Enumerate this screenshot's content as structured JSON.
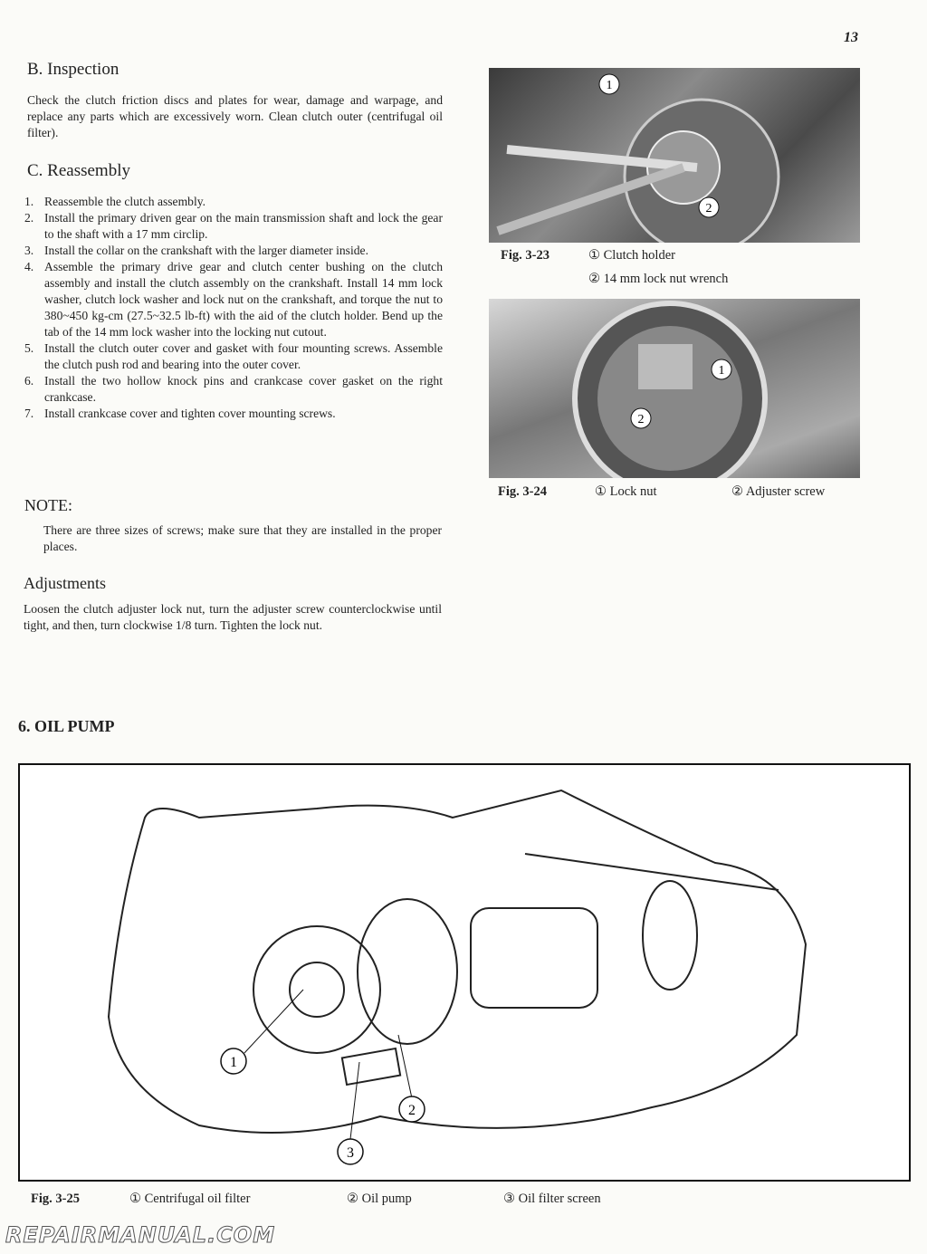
{
  "page_number": "13",
  "inspection": {
    "heading": "B.  Inspection",
    "text": "Check the clutch friction discs and plates for wear, damage and warpage, and replace any parts which are excessively worn. Clean clutch outer (centrifugal oil filter)."
  },
  "reassembly": {
    "heading": "C.  Reassembly",
    "items": [
      {
        "num": "1.",
        "text": "Reassemble the clutch assembly."
      },
      {
        "num": "2.",
        "text": "Install the primary driven gear on the main transmission shaft and lock the gear to the shaft with a 17 mm circlip."
      },
      {
        "num": "3.",
        "text": "Install the collar on the crankshaft with the larger diameter inside."
      },
      {
        "num": "4.",
        "text": "Assemble the primary drive gear and clutch center bushing on the clutch assembly and install the clutch assembly on the crankshaft. Install 14 mm lock washer, clutch lock washer and lock nut on the crankshaft, and torque the nut to 380~450 kg-cm (27.5~32.5 lb-ft) with the aid of the clutch holder. Bend up the tab of the 14 mm lock washer into the locking nut cutout."
      },
      {
        "num": "5.",
        "text": "Install the clutch outer cover and gasket with four mounting screws. Assemble the clutch push rod and bearing into the outer cover."
      },
      {
        "num": "6.",
        "text": "Install the two hollow knock pins and crankcase cover gasket on the right crankcase."
      },
      {
        "num": "7.",
        "text": "Install crankcase cover and tighten cover mounting screws."
      }
    ]
  },
  "note": {
    "heading": "NOTE:",
    "text": "There are three sizes of screws; make sure that they are installed in the proper places."
  },
  "adjustments": {
    "heading": "Adjustments",
    "text": "Loosen the clutch adjuster lock nut, turn the adjuster screw counterclockwise until tight, and then, turn clockwise 1/8 turn. Tighten the lock nut."
  },
  "fig_3_23": {
    "label": "Fig. 3-23",
    "items": [
      "① Clutch holder",
      "② 14 mm lock nut wrench"
    ],
    "callouts": [
      "1",
      "2"
    ]
  },
  "fig_3_24": {
    "label": "Fig. 3-24",
    "items": [
      "① Lock nut",
      "② Adjuster screw"
    ],
    "callouts": [
      "1",
      "2"
    ]
  },
  "oil_pump": {
    "heading": "6.  OIL PUMP"
  },
  "fig_3_25": {
    "label": "Fig. 3-25",
    "items": [
      "① Centrifugal oil filter",
      "② Oil pump",
      "③ Oil filter screen"
    ],
    "callouts": [
      "1",
      "2",
      "3"
    ]
  },
  "watermark": "REPAIRMANUAL.COM"
}
